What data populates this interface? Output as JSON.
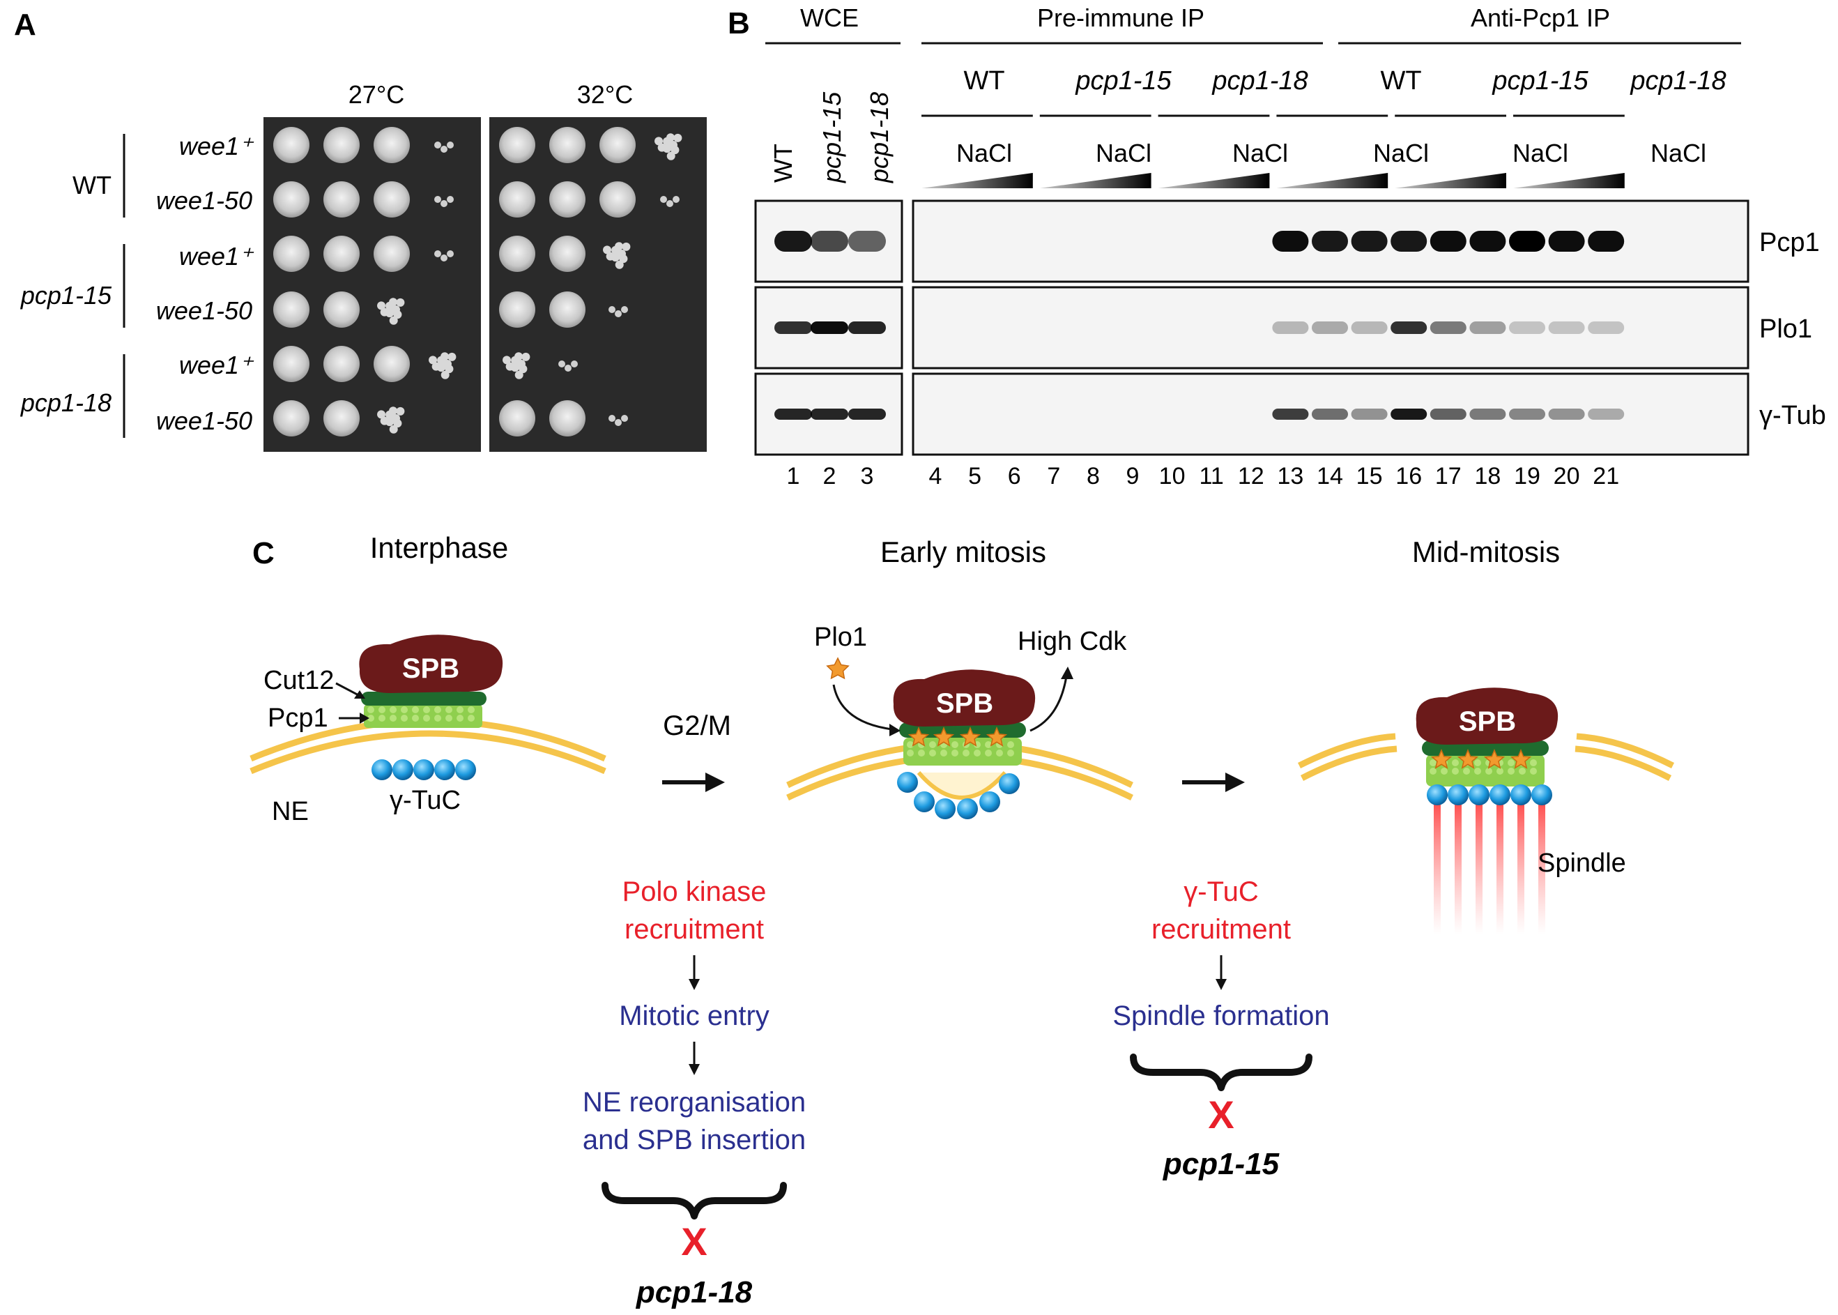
{
  "panel_a": {
    "letter": "A",
    "temps": [
      "27°C",
      "32°C"
    ],
    "groups": [
      "WT",
      "pcp1-15",
      "pcp1-18"
    ],
    "rows": [
      "wee1⁺",
      "wee1-50",
      "wee1⁺",
      "wee1-50",
      "wee1⁺",
      "wee1-50"
    ],
    "growth_27": [
      [
        4,
        4,
        3,
        1
      ],
      [
        4,
        4,
        3,
        1
      ],
      [
        4,
        4,
        3,
        1
      ],
      [
        4,
        4,
        2,
        0
      ],
      [
        4,
        4,
        3,
        2
      ],
      [
        4,
        4,
        2,
        0
      ]
    ],
    "growth_32": [
      [
        4,
        4,
        4,
        2
      ],
      [
        4,
        4,
        3,
        1
      ],
      [
        4,
        4,
        2,
        0
      ],
      [
        4,
        3,
        1,
        0
      ],
      [
        2,
        1,
        0,
        0
      ],
      [
        4,
        3,
        1,
        0
      ]
    ]
  },
  "panel_b": {
    "letter": "B",
    "header_wce": "WCE",
    "header_pre": "Pre-immune IP",
    "header_anti": "Anti-Pcp1 IP",
    "wce_lanes": [
      "WT",
      "pcp1-15",
      "pcp1-18"
    ],
    "ip_groups": [
      "WT",
      "pcp1-15",
      "pcp1-18",
      "WT",
      "pcp1-15",
      "pcp1-18"
    ],
    "salt": "NaCl",
    "blot_labels": [
      "Pcp1",
      "Plo1",
      "γ-Tub"
    ],
    "lane_numbers": [
      "1",
      "2",
      "3",
      "4",
      "5",
      "6",
      "7",
      "8",
      "9",
      "10",
      "11",
      "12",
      "13",
      "14",
      "15",
      "16",
      "17",
      "18",
      "19",
      "20",
      "21"
    ],
    "pcp1_intensity": [
      0.9,
      0.7,
      0.6,
      0,
      0,
      0,
      0,
      0,
      0,
      0,
      0,
      0,
      0.95,
      0.9,
      0.9,
      0.9,
      0.95,
      0.95,
      1,
      0.95,
      0.95
    ],
    "plo1_intensity": [
      0.8,
      0.95,
      0.85,
      0,
      0,
      0,
      0,
      0,
      0,
      0,
      0,
      0,
      0.25,
      0.3,
      0.25,
      0.8,
      0.5,
      0.35,
      0.2,
      0.2,
      0.2
    ],
    "gtub_intensity": [
      0.85,
      0.85,
      0.85,
      0,
      0,
      0,
      0,
      0,
      0,
      0,
      0,
      0,
      0.75,
      0.55,
      0.4,
      0.9,
      0.6,
      0.5,
      0.45,
      0.4,
      0.3
    ]
  },
  "panel_c": {
    "letter": "C",
    "stages": [
      "Interphase",
      "Early mitosis",
      "Mid-mitosis"
    ],
    "spb": "SPB",
    "labels": {
      "cut12": "Cut12",
      "pcp1": "Pcp1",
      "ne": "NE",
      "gtuc": "γ-TuC",
      "g2m": "G2/M",
      "plo1": "Plo1",
      "high_cdk": "High Cdk",
      "spindle": "Spindle"
    },
    "left_pathway": {
      "step1": [
        "Polo kinase",
        "recruitment"
      ],
      "step2": "Mitotic entry",
      "step3": [
        "NE reorganisation",
        "and SPB insertion"
      ],
      "mark": "X",
      "mutant": "pcp1-18"
    },
    "right_pathway": {
      "step1": [
        "γ-TuC",
        "recruitment"
      ],
      "step2": "Spindle formation",
      "mark": "X",
      "mutant": "pcp1-15"
    },
    "colors": {
      "spb": "#6b1a1a",
      "cut12": "#1f6b2e",
      "pcp1": "#8fcf4e",
      "gtuc": "#1e9be0",
      "ne": "#f5c44a",
      "plo1": "#f29a2e",
      "red_text": "#e8202a",
      "blue_text": "#2a2f8f",
      "spindle": "#ff5a5a"
    }
  }
}
